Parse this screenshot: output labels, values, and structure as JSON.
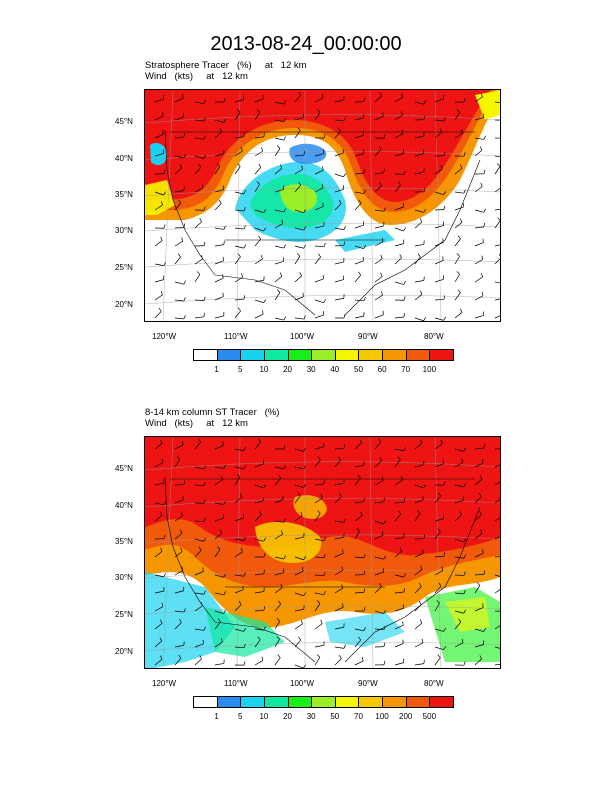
{
  "main_title": "2013-08-24_00:00:00",
  "panel1": {
    "line1": "Stratosphere Tracer   (%)     at   12 km",
    "line2": "Wind   (kts)     at   12 km",
    "lat_labels": [
      "45°N",
      "40°N",
      "35°N",
      "30°N",
      "25°N",
      "20°N"
    ],
    "lon_labels": [
      "120°W",
      "110°W",
      "100°W",
      "90°W",
      "80°W"
    ],
    "colorbar_labels": [
      "1",
      "5",
      "10",
      "20",
      "30",
      "40",
      "50",
      "60",
      "70",
      "100"
    ]
  },
  "panel2": {
    "line1": "8-14 km column ST Tracer   (%)",
    "line2": "Wind   (kts)     at   12 km",
    "lat_labels": [
      "45°N",
      "40°N",
      "35°N",
      "30°N",
      "25°N",
      "20°N"
    ],
    "lon_labels": [
      "120°W",
      "110°W",
      "100°W",
      "90°W",
      "80°W"
    ],
    "colorbar_labels": [
      "1",
      "5",
      "10",
      "20",
      "30",
      "50",
      "70",
      "100",
      "200",
      "500"
    ]
  },
  "colors": {
    "palette": [
      "#ffffff",
      "#2a8cf0",
      "#18d2f0",
      "#10e8a0",
      "#18ee18",
      "#9cee28",
      "#f6f600",
      "#f6c800",
      "#f69600",
      "#f05a0a",
      "#ee1414"
    ]
  }
}
